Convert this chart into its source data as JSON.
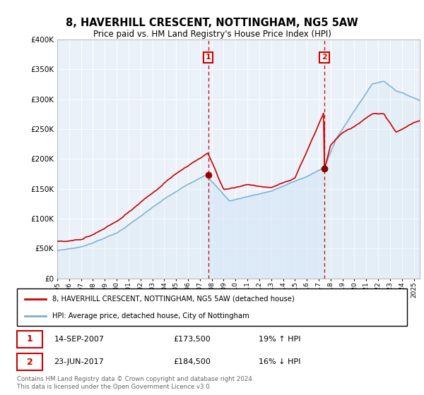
{
  "title": "8, HAVERHILL CRESCENT, NOTTINGHAM, NG5 5AW",
  "subtitle": "Price paid vs. HM Land Registry's House Price Index (HPI)",
  "legend_line1": "8, HAVERHILL CRESCENT, NOTTINGHAM, NG5 5AW (detached house)",
  "legend_line2": "HPI: Average price, detached house, City of Nottingham",
  "annotation1_date": "14-SEP-2007",
  "annotation1_price": "£173,500",
  "annotation1_hpi": "19% ↑ HPI",
  "annotation2_date": "23-JUN-2017",
  "annotation2_price": "£184,500",
  "annotation2_hpi": "16% ↓ HPI",
  "footer": "Contains HM Land Registry data © Crown copyright and database right 2024.\nThis data is licensed under the Open Government Licence v3.0.",
  "house_color": "#cc0000",
  "hpi_color": "#7bafd4",
  "hpi_fill_color": "#d6e8f7",
  "background_color": "#ffffff",
  "plot_bg_color": "#eaf1f8",
  "sale1_year": 2007.71,
  "sale1_price": 173500,
  "sale2_year": 2017.48,
  "sale2_price": 184500,
  "ylim": [
    0,
    400000
  ],
  "yticks": [
    0,
    50000,
    100000,
    150000,
    200000,
    250000,
    300000,
    350000,
    400000
  ],
  "xmin": 1995,
  "xmax": 2025.5
}
